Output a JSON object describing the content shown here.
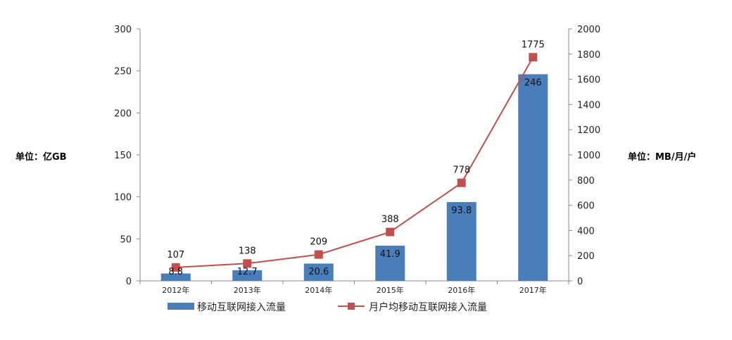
{
  "chart_data": {
    "type": "bar",
    "categories": [
      "2012年",
      "2013年",
      "2014年",
      "2015年",
      "2016年",
      "2017年"
    ],
    "series": [
      {
        "name": "移动互联网接入流量",
        "type": "bar",
        "axis": "left",
        "values": [
          8.8,
          12.7,
          20.6,
          41.9,
          93.8,
          246
        ],
        "labels": [
          "8.8",
          "12.7",
          "20.6",
          "41.9",
          "93.8",
          "246"
        ],
        "color": "#4a7ebb"
      },
      {
        "name": "月户均移动互联网接入流量",
        "type": "line",
        "axis": "right",
        "values": [
          107,
          138,
          209,
          388,
          778,
          1775
        ],
        "labels": [
          "107",
          "138",
          "209",
          "388",
          "778",
          "1775"
        ],
        "color": "#c0504d"
      }
    ],
    "ylabel": "单位：亿GB",
    "y2label": "单位：MB/月/户",
    "ylim": [
      0,
      300
    ],
    "y2lim": [
      0,
      2000
    ],
    "yticks": [
      "0",
      "50",
      "100",
      "150",
      "200",
      "250",
      "300"
    ],
    "y2ticks": [
      "0",
      "200",
      "400",
      "600",
      "800",
      "1000",
      "1200",
      "1400",
      "1600",
      "1800",
      "2000"
    ],
    "grid": false,
    "legend": "bottom"
  }
}
